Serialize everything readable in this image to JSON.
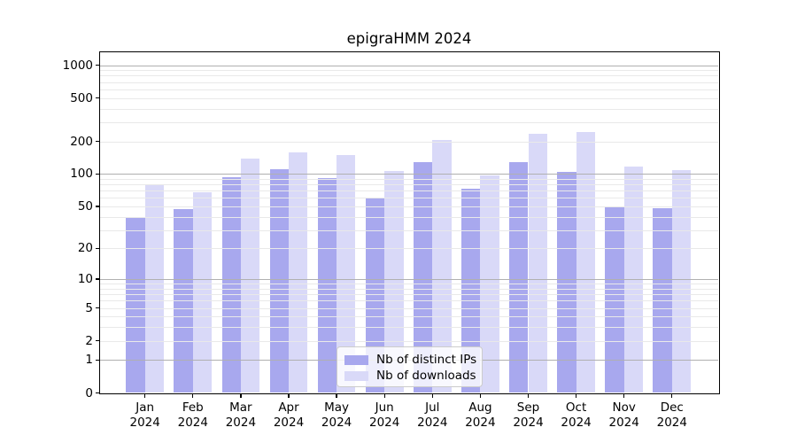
{
  "chart": {
    "title": "epigraHMM 2024"
  },
  "chart_data": {
    "type": "bar",
    "title": "epigraHMM 2024",
    "categories": [
      "Jan",
      "Feb",
      "Mar",
      "Apr",
      "May",
      "Jun",
      "Jul",
      "Aug",
      "Sep",
      "Oct",
      "Nov",
      "Dec"
    ],
    "category_year": "2024",
    "series": [
      {
        "name": "Nb of distinct IPs",
        "color": "#a8a8ee",
        "values": [
          39,
          47,
          94,
          111,
          92,
          60,
          128,
          73,
          129,
          105,
          50,
          48
        ]
      },
      {
        "name": "Nb of downloads",
        "color": "#d9d9f8",
        "values": [
          80,
          68,
          138,
          157,
          150,
          106,
          205,
          97,
          235,
          245,
          118,
          108
        ]
      }
    ],
    "yscale": "log10(1+y)",
    "yticks": [
      0,
      1,
      2,
      5,
      10,
      20,
      50,
      100,
      200,
      500,
      1000
    ],
    "ylim": [
      0,
      1300
    ],
    "grid": "both",
    "grid_over_bars": true,
    "legend_position": "lower-center-inside",
    "colors": {
      "major_grid": "#b0b0b0",
      "minor_grid": "#e9e9e9",
      "spine": "#000000",
      "legend_border": "#cccccc",
      "legend_background": "rgba(255,255,255,0.8)"
    }
  }
}
